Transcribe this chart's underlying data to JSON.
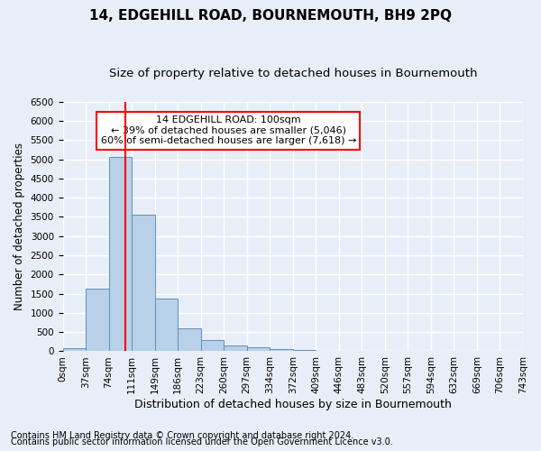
{
  "title": "14, EDGEHILL ROAD, BOURNEMOUTH, BH9 2PQ",
  "subtitle": "Size of property relative to detached houses in Bournemouth",
  "xlabel": "Distribution of detached houses by size in Bournemouth",
  "ylabel": "Number of detached properties",
  "footnote1": "Contains HM Land Registry data © Crown copyright and database right 2024.",
  "footnote2": "Contains public sector information licensed under the Open Government Licence v3.0.",
  "bin_labels": [
    "0sqm",
    "37sqm",
    "74sqm",
    "111sqm",
    "149sqm",
    "186sqm",
    "223sqm",
    "260sqm",
    "297sqm",
    "334sqm",
    "372sqm",
    "409sqm",
    "446sqm",
    "483sqm",
    "520sqm",
    "557sqm",
    "594sqm",
    "632sqm",
    "669sqm",
    "706sqm",
    "743sqm"
  ],
  "bar_values": [
    75,
    1630,
    5060,
    3560,
    1380,
    600,
    295,
    145,
    105,
    65,
    40,
    0,
    0,
    0,
    0,
    0,
    0,
    0,
    0,
    0
  ],
  "bar_color": "#b8d0e8",
  "bar_edge_color": "#6090b8",
  "vline_color": "red",
  "ylim": [
    0,
    6500
  ],
  "yticks": [
    0,
    500,
    1000,
    1500,
    2000,
    2500,
    3000,
    3500,
    4000,
    4500,
    5000,
    5500,
    6000,
    6500
  ],
  "annotation_text": "14 EDGEHILL ROAD: 100sqm\n← 39% of detached houses are smaller (5,046)\n60% of semi-detached houses are larger (7,618) →",
  "annotation_box_color": "white",
  "annotation_box_edge_color": "red",
  "bg_color": "#e8eef8",
  "plot_bg_color": "#e8eef8",
  "grid_color": "white",
  "title_fontsize": 11,
  "subtitle_fontsize": 9.5,
  "ylabel_fontsize": 8.5,
  "xlabel_fontsize": 9,
  "tick_fontsize": 7.5,
  "footnote_fontsize": 7,
  "annot_fontsize": 8
}
